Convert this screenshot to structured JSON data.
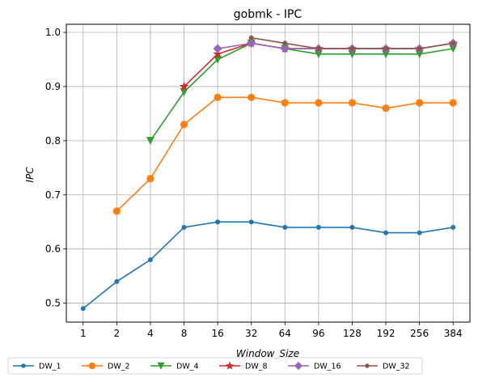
{
  "chart_data": {
    "type": "line",
    "title": "gobmk - IPC",
    "xlabel": "Window_Size",
    "ylabel": "IPC",
    "categories": [
      "1",
      "2",
      "4",
      "8",
      "16",
      "32",
      "64",
      "96",
      "128",
      "192",
      "256",
      "384"
    ],
    "yticks": [
      "0.5",
      "0.6",
      "0.7",
      "0.8",
      "0.9",
      "1.0"
    ],
    "ylim": [
      0.465,
      1.015
    ],
    "grid": true,
    "legend_position": "bottom",
    "series": [
      {
        "name": "DW_1",
        "color": "#1f77b4",
        "marker": "dot",
        "values": [
          0.49,
          0.54,
          0.58,
          0.64,
          0.65,
          0.65,
          0.64,
          0.64,
          0.64,
          0.63,
          0.63,
          0.64
        ]
      },
      {
        "name": "DW_2",
        "color": "#ff7f0e",
        "marker": "circle",
        "values": [
          null,
          0.67,
          0.73,
          0.83,
          0.88,
          0.88,
          0.87,
          0.87,
          0.87,
          0.86,
          0.87,
          0.87
        ]
      },
      {
        "name": "DW_4",
        "color": "#2ca02c",
        "marker": "triangle-down",
        "values": [
          null,
          null,
          0.8,
          0.89,
          0.95,
          0.98,
          0.97,
          0.96,
          0.96,
          0.96,
          0.96,
          0.97
        ]
      },
      {
        "name": "DW_8",
        "color": "#d62728",
        "marker": "star",
        "values": [
          null,
          null,
          null,
          0.9,
          0.96,
          0.98,
          0.97,
          0.97,
          0.97,
          0.97,
          0.97,
          0.98
        ]
      },
      {
        "name": "DW_16",
        "color": "#9467bd",
        "marker": "diamond",
        "values": [
          null,
          null,
          null,
          null,
          0.97,
          0.98,
          0.97,
          0.97,
          0.97,
          0.97,
          0.97,
          0.98
        ]
      },
      {
        "name": "DW_32",
        "color": "#8c564b",
        "marker": "dot",
        "values": [
          null,
          null,
          null,
          null,
          null,
          0.99,
          0.98,
          0.97,
          0.97,
          0.97,
          0.97,
          0.98
        ]
      }
    ]
  }
}
